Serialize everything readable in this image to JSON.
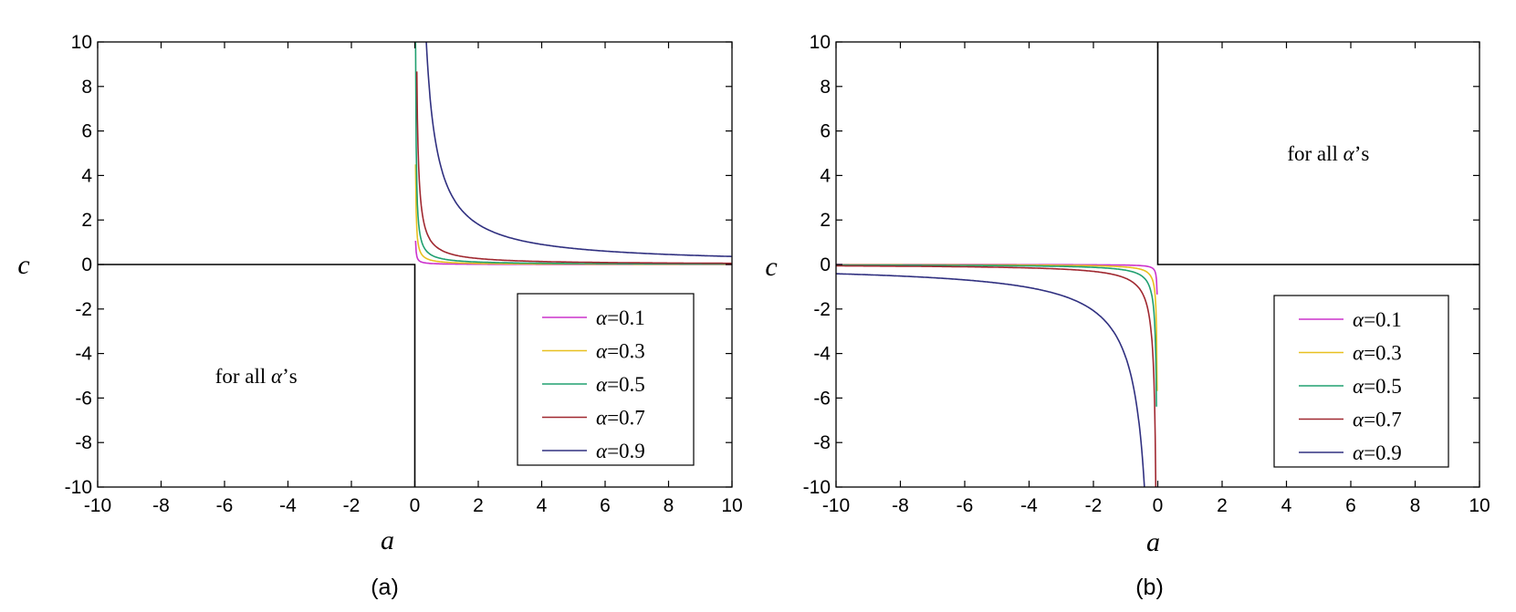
{
  "chart_data": [
    {
      "type": "line",
      "panel_label": "(a)",
      "xlabel": "a",
      "ylabel": "c",
      "xlim": [
        -10,
        10
      ],
      "ylim": [
        -10,
        10
      ],
      "x_ticks": [
        "-10",
        "-8",
        "-6",
        "-4",
        "-2",
        "0",
        "2",
        "4",
        "6",
        "8",
        "10"
      ],
      "y_ticks": [
        "10",
        "8",
        "6",
        "4",
        "2",
        "0",
        "-2",
        "-4",
        "-6",
        "-8",
        "-10"
      ],
      "grid": false,
      "legend_position": "bottom-right",
      "annotation": {
        "prefix": "for all ",
        "symbol": "α",
        "suffix": "’s",
        "x": -5,
        "y": -5
      },
      "boundary": {
        "x": [
          -10,
          0,
          0
        ],
        "y": [
          0,
          0,
          -10
        ],
        "color": "#000000"
      },
      "series": [
        {
          "name": "=0.1",
          "symbol": "α",
          "color": "#cc33cc",
          "alpha": 0.1
        },
        {
          "name": "=0.3",
          "symbol": "α",
          "color": "#e8c020",
          "alpha": 0.3
        },
        {
          "name": "=0.5",
          "symbol": "α",
          "color": "#20a070",
          "alpha": 0.5
        },
        {
          "name": "=0.7",
          "symbol": "α",
          "color": "#a02830",
          "alpha": 0.7
        },
        {
          "name": "=0.9",
          "symbol": "α",
          "color": "#303080",
          "alpha": 0.9
        }
      ]
    },
    {
      "type": "line",
      "panel_label": "(b)",
      "xlabel": "a",
      "ylabel": "c",
      "xlim": [
        -10,
        10
      ],
      "ylim": [
        -10,
        10
      ],
      "x_ticks": [
        "-10",
        "-8",
        "-6",
        "-4",
        "-2",
        "0",
        "2",
        "4",
        "6",
        "8",
        "10"
      ],
      "y_ticks": [
        "10",
        "8",
        "6",
        "4",
        "2",
        "0",
        "-2",
        "-4",
        "-6",
        "-8",
        "-10"
      ],
      "grid": false,
      "legend_position": "bottom-right",
      "annotation": {
        "prefix": "for all ",
        "symbol": "α",
        "suffix": "’s",
        "x": 5.3,
        "y": 5
      },
      "boundary": {
        "x": [
          0,
          0,
          10
        ],
        "y": [
          10,
          0,
          0
        ],
        "color": "#000000"
      },
      "series": [
        {
          "name": "=0.1",
          "symbol": "α",
          "color": "#cc33cc",
          "alpha": 0.1
        },
        {
          "name": "=0.3",
          "symbol": "α",
          "color": "#e8c020",
          "alpha": 0.3
        },
        {
          "name": "=0.5",
          "symbol": "α",
          "color": "#20a070",
          "alpha": 0.5
        },
        {
          "name": "=0.7",
          "symbol": "α",
          "color": "#a02830",
          "alpha": 0.7
        },
        {
          "name": "=0.9",
          "symbol": "α",
          "color": "#303080",
          "alpha": 0.9
        }
      ]
    }
  ]
}
